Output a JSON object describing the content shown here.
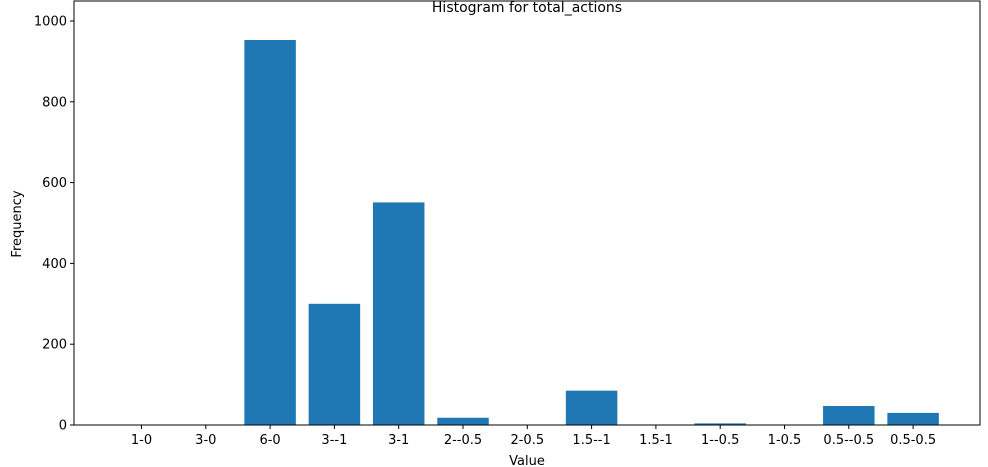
{
  "chart_data": {
    "type": "bar",
    "title": "Histogram for total_actions",
    "xlabel": "Value",
    "ylabel": "Frequency",
    "categories": [
      "1-0",
      "3-0",
      "6-0",
      "3--1",
      "3-1",
      "2--0.5",
      "2-0.5",
      "1.5--1",
      "1.5-1",
      "1--0.5",
      "1-0.5",
      "0.5--0.5",
      "0.5-0.5"
    ],
    "values": [
      0,
      0,
      953,
      300,
      551,
      18,
      0,
      85,
      0,
      4,
      0,
      47,
      30
    ],
    "ylim": [
      0,
      1000
    ],
    "yticks": [
      0,
      200,
      400,
      600,
      800,
      1000
    ],
    "bar_color": "#1f77b4",
    "grid": false
  }
}
